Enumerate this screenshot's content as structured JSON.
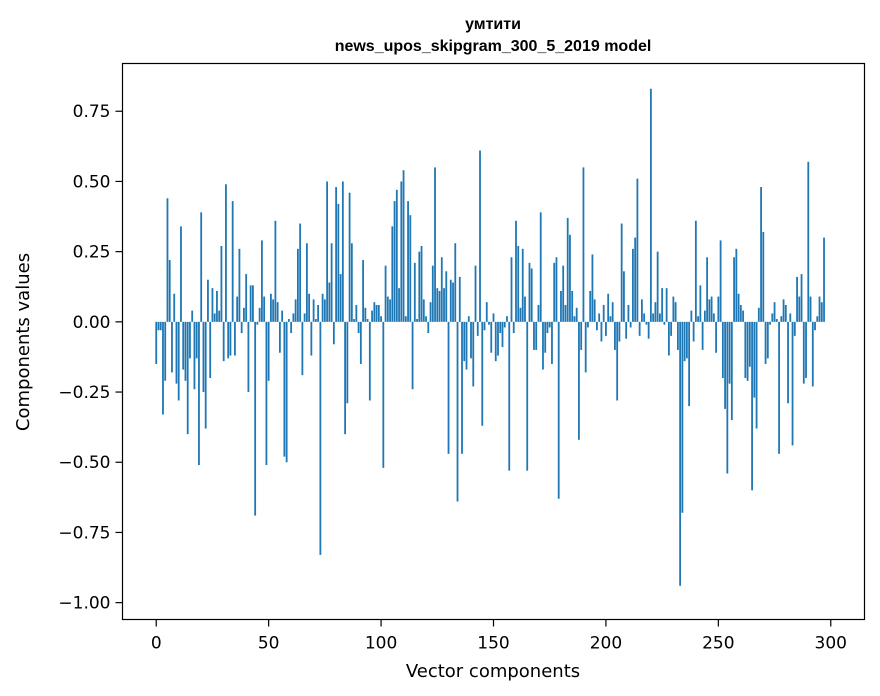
{
  "chart_data": {
    "type": "bar",
    "title": "умтити",
    "subtitle": "news_upos_skipgram_300_5_2019 model",
    "xlabel": "Vector components",
    "ylabel": "Components values",
    "xlim": [
      -15,
      315
    ],
    "ylim": [
      -1.06,
      0.92
    ],
    "xticks": [
      0,
      50,
      100,
      150,
      200,
      250,
      300
    ],
    "xtick_labels": [
      "0",
      "50",
      "100",
      "150",
      "200",
      "250",
      "300"
    ],
    "yticks": [
      -1.0,
      -0.75,
      -0.5,
      -0.25,
      0.0,
      0.25,
      0.5,
      0.75
    ],
    "ytick_labels": [
      "−1.00",
      "−0.75",
      "−0.50",
      "−0.25",
      "0.00",
      "0.25",
      "0.50",
      "0.75"
    ],
    "bar_color": "#1f77b4",
    "values": [
      -0.15,
      -0.03,
      -0.03,
      -0.33,
      -0.21,
      0.44,
      0.22,
      -0.18,
      0.1,
      -0.22,
      -0.28,
      0.34,
      -0.17,
      -0.21,
      -0.4,
      -0.13,
      0.04,
      -0.24,
      -0.13,
      -0.51,
      0.39,
      -0.25,
      -0.38,
      0.15,
      -0.2,
      0.12,
      0.03,
      0.11,
      0.04,
      0.27,
      -0.14,
      0.49,
      -0.13,
      -0.12,
      0.43,
      -0.12,
      0.09,
      0.26,
      -0.04,
      0.05,
      0.17,
      -0.25,
      0.13,
      0.13,
      -0.69,
      -0.01,
      0.05,
      0.29,
      0.09,
      -0.51,
      -0.21,
      0.1,
      0.08,
      0.36,
      0.07,
      -0.11,
      0.04,
      -0.48,
      -0.5,
      0.01,
      -0.04,
      0.03,
      0.08,
      0.26,
      0.35,
      -0.19,
      0.03,
      0.28,
      0.1,
      -0.12,
      0.08,
      0.01,
      0.06,
      -0.83,
      0.1,
      0.08,
      0.5,
      0.14,
      0.28,
      -0.08,
      0.48,
      0.42,
      0.17,
      0.5,
      -0.4,
      -0.29,
      0.46,
      0.28,
      0.01,
      0.06,
      -0.04,
      -0.15,
      0.22,
      0.05,
      0.01,
      -0.28,
      0.04,
      0.07,
      0.06,
      0.06,
      0.02,
      -0.52,
      0.2,
      0.09,
      0.08,
      0.34,
      0.43,
      0.47,
      0.12,
      0.5,
      0.54,
      0.02,
      0.43,
      0.38,
      -0.24,
      0.21,
      0.01,
      0.25,
      0.27,
      0.08,
      0.02,
      -0.04,
      0.07,
      0.2,
      0.55,
      0.12,
      0.11,
      0.23,
      0.12,
      0.18,
      -0.47,
      0.15,
      0.14,
      0.28,
      -0.64,
      0.16,
      -0.47,
      -0.14,
      -0.17,
      0.02,
      -0.13,
      -0.23,
      0.2,
      -0.05,
      0.61,
      -0.37,
      -0.03,
      0.07,
      -0.01,
      -0.11,
      0.03,
      -0.14,
      -0.12,
      -0.04,
      -0.09,
      -0.02,
      0.02,
      -0.53,
      0.23,
      -0.04,
      0.36,
      0.27,
      0.05,
      0.26,
      0.09,
      -0.53,
      0.21,
      0.19,
      -0.1,
      -0.1,
      0.06,
      0.39,
      -0.17,
      -0.11,
      -0.04,
      -0.02,
      -0.15,
      0.21,
      0.23,
      -0.63,
      0.11,
      0.2,
      0.06,
      0.37,
      0.31,
      0.11,
      0.02,
      0.05,
      -0.42,
      -0.1,
      0.55,
      -0.18,
      -0.02,
      0.11,
      0.24,
      0.08,
      -0.03,
      0.03,
      -0.07,
      0.06,
      -0.05,
      0.1,
      0.02,
      0.07,
      -0.1,
      -0.28,
      -0.07,
      0.35,
      0.18,
      -0.06,
      0.06,
      -0.02,
      0.26,
      0.3,
      0.51,
      -0.05,
      0.08,
      0.03,
      -0.01,
      -0.06,
      0.83,
      0.03,
      0.07,
      0.25,
      0.03,
      0.12,
      -0.01,
      0.12,
      -0.12,
      -0.05,
      0.09,
      0.07,
      -0.1,
      -0.94,
      -0.68,
      -0.14,
      -0.13,
      -0.3,
      0.04,
      -0.07,
      0.36,
      0.02,
      0.13,
      -0.1,
      0.04,
      0.23,
      0.08,
      0.09,
      0.03,
      -0.11,
      0.09,
      0.29,
      -0.2,
      -0.31,
      -0.54,
      -0.22,
      -0.35,
      0.23,
      0.26,
      0.1,
      0.06,
      0.04,
      -0.2,
      -0.21,
      -0.16,
      -0.6,
      -0.27,
      -0.38,
      0.05,
      0.48,
      0.32,
      -0.15,
      -0.13,
      -0.01,
      0.03,
      0.07,
      0.01,
      -0.47,
      0.02,
      0.08,
      0.06,
      -0.29,
      0.03,
      -0.44,
      -0.05,
      0.16,
      0.09,
      0.17,
      -0.22,
      -0.2,
      0.57,
      0.09,
      -0.23,
      -0.03,
      0.02,
      0.09,
      0.07,
      0.3
    ]
  }
}
